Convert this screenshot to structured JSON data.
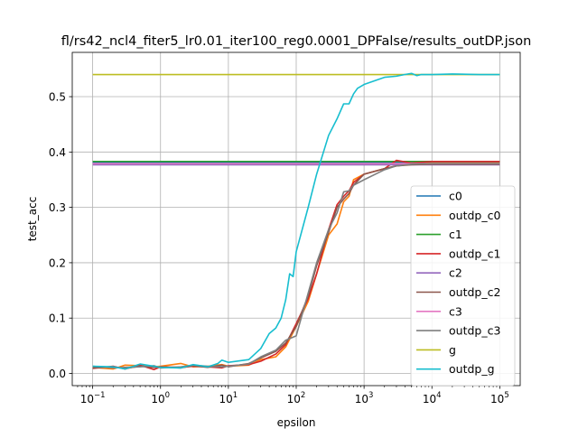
{
  "chart_data": {
    "type": "line",
    "title": "fl/rs42_ncl4_fiter5_lr0.01_iter100_reg0.0001_DPFalse/results_outDP.json",
    "xlabel": "epsilon",
    "ylabel": "test_acc",
    "xscale": "log",
    "xlim": [
      0.05,
      200000
    ],
    "ylim": [
      -0.022,
      0.58
    ],
    "grid": true,
    "legend_position": "center right",
    "x_ticks": [
      {
        "value": 0.1,
        "base": "10",
        "exp": "−1"
      },
      {
        "value": 1,
        "base": "10",
        "exp": "0"
      },
      {
        "value": 10,
        "base": "10",
        "exp": "1"
      },
      {
        "value": 100,
        "base": "10",
        "exp": "2"
      },
      {
        "value": 1000,
        "base": "10",
        "exp": "3"
      },
      {
        "value": 10000,
        "base": "10",
        "exp": "4"
      },
      {
        "value": 100000,
        "base": "10",
        "exp": "5"
      }
    ],
    "y_ticks": [
      {
        "value": 0.0,
        "label": "0.0"
      },
      {
        "value": 0.1,
        "label": "0.1"
      },
      {
        "value": 0.2,
        "label": "0.2"
      },
      {
        "value": 0.3,
        "label": "0.3"
      },
      {
        "value": 0.4,
        "label": "0.4"
      },
      {
        "value": 0.5,
        "label": "0.5"
      }
    ],
    "series": [
      {
        "name": "c0",
        "color": "#1f77b4",
        "x": [
          0.1,
          100000
        ],
        "y": [
          0.381,
          0.381
        ]
      },
      {
        "name": "outdp_c0",
        "color": "#ff7f0e",
        "x": [
          0.1,
          0.2,
          0.3,
          0.5,
          0.8,
          1,
          2,
          3,
          5,
          8,
          10,
          20,
          30,
          50,
          70,
          100,
          150,
          200,
          300,
          400,
          500,
          600,
          700,
          1000,
          2000,
          3000,
          5000,
          10000,
          100000
        ],
        "y": [
          0.011,
          0.008,
          0.015,
          0.014,
          0.012,
          0.013,
          0.018,
          0.012,
          0.013,
          0.016,
          0.013,
          0.015,
          0.025,
          0.03,
          0.048,
          0.085,
          0.13,
          0.18,
          0.25,
          0.27,
          0.31,
          0.32,
          0.35,
          0.36,
          0.37,
          0.375,
          0.378,
          0.38,
          0.38
        ]
      },
      {
        "name": "c1",
        "color": "#2ca02c",
        "x": [
          0.1,
          100000
        ],
        "y": [
          0.383,
          0.383
        ]
      },
      {
        "name": "outdp_c1",
        "color": "#d62728",
        "x": [
          0.1,
          0.2,
          0.3,
          0.5,
          0.8,
          1,
          2,
          3,
          5,
          8,
          10,
          20,
          30,
          50,
          70,
          100,
          150,
          200,
          300,
          400,
          500,
          600,
          700,
          1000,
          2000,
          3000,
          5000,
          10000,
          100000
        ],
        "y": [
          0.009,
          0.013,
          0.008,
          0.015,
          0.007,
          0.012,
          0.011,
          0.013,
          0.012,
          0.01,
          0.014,
          0.016,
          0.022,
          0.035,
          0.052,
          0.09,
          0.135,
          0.18,
          0.26,
          0.305,
          0.32,
          0.33,
          0.345,
          0.36,
          0.37,
          0.385,
          0.38,
          0.383,
          0.383
        ]
      },
      {
        "name": "c2",
        "color": "#9467bd",
        "x": [
          0.1,
          100000
        ],
        "y": [
          0.377,
          0.377
        ]
      },
      {
        "name": "outdp_c2",
        "color": "#8c564b",
        "x": [
          0.1,
          0.2,
          0.3,
          0.5,
          0.8,
          1,
          2,
          3,
          5,
          8,
          10,
          20,
          30,
          50,
          70,
          100,
          150,
          200,
          300,
          400,
          500,
          600,
          700,
          1000,
          2000,
          3000,
          5000,
          10000,
          100000
        ],
        "y": [
          0.01,
          0.012,
          0.009,
          0.013,
          0.011,
          0.012,
          0.01,
          0.014,
          0.011,
          0.015,
          0.012,
          0.018,
          0.028,
          0.04,
          0.055,
          0.085,
          0.14,
          0.195,
          0.255,
          0.3,
          0.315,
          0.325,
          0.34,
          0.36,
          0.37,
          0.375,
          0.377,
          0.378,
          0.378
        ]
      },
      {
        "name": "c3",
        "color": "#e377c2",
        "x": [
          0.1,
          100000
        ],
        "y": [
          0.379,
          0.379
        ]
      },
      {
        "name": "outdp_c3",
        "color": "#7f7f7f",
        "x": [
          0.1,
          0.2,
          0.3,
          0.5,
          0.8,
          1,
          2,
          3,
          5,
          8,
          10,
          20,
          30,
          50,
          70,
          100,
          150,
          200,
          300,
          400,
          500,
          600,
          700,
          1000,
          2000,
          3000,
          5000,
          10000,
          100000
        ],
        "y": [
          0.013,
          0.01,
          0.011,
          0.012,
          0.014,
          0.01,
          0.012,
          0.015,
          0.013,
          0.012,
          0.013,
          0.017,
          0.03,
          0.042,
          0.06,
          0.068,
          0.145,
          0.2,
          0.26,
          0.29,
          0.328,
          0.33,
          0.34,
          0.35,
          0.368,
          0.375,
          0.378,
          0.379,
          0.379
        ]
      },
      {
        "name": "g",
        "color": "#bcbd22",
        "x": [
          0.1,
          100000
        ],
        "y": [
          0.54,
          0.54
        ]
      },
      {
        "name": "outdp_g",
        "color": "#17becf",
        "x": [
          0.1,
          0.2,
          0.3,
          0.5,
          0.8,
          1,
          2,
          3,
          5,
          7,
          8,
          10,
          20,
          30,
          40,
          50,
          60,
          70,
          80,
          90,
          100,
          150,
          200,
          300,
          400,
          500,
          600,
          700,
          800,
          1000,
          2000,
          3000,
          4000,
          5000,
          6000,
          7000,
          10000,
          20000,
          50000,
          100000
        ],
        "y": [
          0.013,
          0.012,
          0.008,
          0.017,
          0.013,
          0.011,
          0.01,
          0.016,
          0.012,
          0.018,
          0.024,
          0.02,
          0.025,
          0.045,
          0.072,
          0.082,
          0.1,
          0.133,
          0.18,
          0.175,
          0.22,
          0.3,
          0.36,
          0.43,
          0.46,
          0.487,
          0.487,
          0.505,
          0.515,
          0.522,
          0.535,
          0.537,
          0.54,
          0.542,
          0.538,
          0.54,
          0.54,
          0.541,
          0.54,
          0.54
        ]
      }
    ]
  }
}
